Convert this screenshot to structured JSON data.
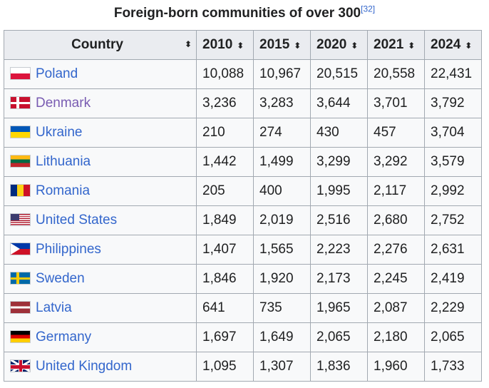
{
  "caption": {
    "title": "Foreign-born communities of over 300",
    "ref": "[32]"
  },
  "headers": {
    "country": "Country",
    "years": [
      "2010",
      "2015",
      "2020",
      "2021",
      "2024"
    ],
    "sort_icon": "sort-both-icon"
  },
  "rows": [
    {
      "country": "Poland",
      "flag": "poland-flag-icon",
      "visited": false,
      "values": [
        "10,088",
        "10,967",
        "20,515",
        "20,558",
        "22,431"
      ]
    },
    {
      "country": "Denmark",
      "flag": "denmark-flag-icon",
      "visited": true,
      "values": [
        "3,236",
        "3,283",
        "3,644",
        "3,701",
        "3,792"
      ]
    },
    {
      "country": "Ukraine",
      "flag": "ukraine-flag-icon",
      "visited": false,
      "values": [
        "210",
        "274",
        "430",
        "457",
        "3,704"
      ]
    },
    {
      "country": "Lithuania",
      "flag": "lithuania-flag-icon",
      "visited": false,
      "values": [
        "1,442",
        "1,499",
        "3,299",
        "3,292",
        "3,579"
      ]
    },
    {
      "country": "Romania",
      "flag": "romania-flag-icon",
      "visited": false,
      "values": [
        "205",
        "400",
        "1,995",
        "2,117",
        "2,992"
      ]
    },
    {
      "country": "United States",
      "flag": "united-states-flag-icon",
      "visited": false,
      "values": [
        "1,849",
        "2,019",
        "2,516",
        "2,680",
        "2,752"
      ]
    },
    {
      "country": "Philippines",
      "flag": "philippines-flag-icon",
      "visited": false,
      "values": [
        "1,407",
        "1,565",
        "2,223",
        "2,276",
        "2,631"
      ]
    },
    {
      "country": "Sweden",
      "flag": "sweden-flag-icon",
      "visited": false,
      "values": [
        "1,846",
        "1,920",
        "2,173",
        "2,245",
        "2,419"
      ]
    },
    {
      "country": "Latvia",
      "flag": "latvia-flag-icon",
      "visited": false,
      "values": [
        "641",
        "735",
        "1,965",
        "2,087",
        "2,229"
      ]
    },
    {
      "country": "Germany",
      "flag": "germany-flag-icon",
      "visited": false,
      "values": [
        "1,697",
        "1,649",
        "2,065",
        "2,180",
        "2,065"
      ]
    },
    {
      "country": "United Kingdom",
      "flag": "united-kingdom-flag-icon",
      "visited": false,
      "values": [
        "1,095",
        "1,307",
        "1,836",
        "1,960",
        "1,733"
      ]
    }
  ],
  "colors": {
    "link": "#3366cc",
    "visited_link": "#795cb2",
    "header_bg": "#eaecf0",
    "cell_bg": "#f8f9fa",
    "border": "#a2a9b1"
  }
}
